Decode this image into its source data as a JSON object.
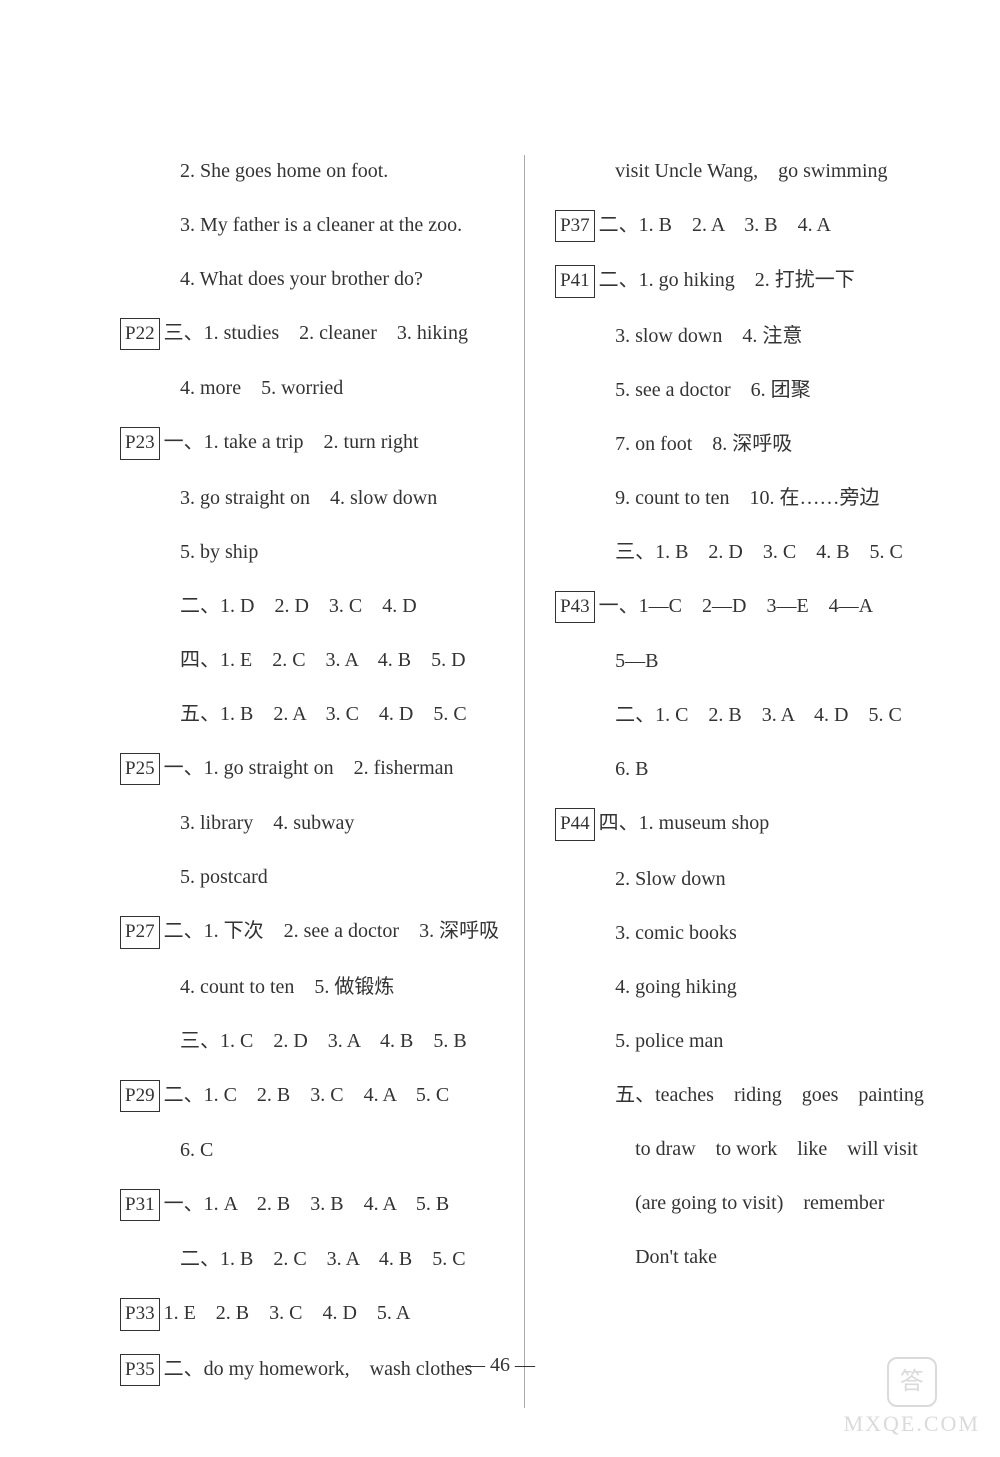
{
  "page_number": "— 46 —",
  "watermark": {
    "logo_text": "答",
    "site_text": "MXQE.COM"
  },
  "leftColumn": [
    {
      "cls": "indent-1",
      "text": "2. She goes home on foot."
    },
    {
      "cls": "indent-1",
      "text": "3. My father is a cleaner at the zoo."
    },
    {
      "cls": "indent-1",
      "text": "4. What does your brother do?"
    },
    {
      "cls": "",
      "box": "P22",
      "text": "三、1. studies　2. cleaner　3. hiking"
    },
    {
      "cls": "indent-1",
      "text": "4. more　5. worried"
    },
    {
      "cls": "",
      "box": "P23",
      "text": "一、1. take a trip　2. turn right"
    },
    {
      "cls": "indent-1",
      "text": "3. go straight on　4. slow down"
    },
    {
      "cls": "indent-1",
      "text": "5. by ship"
    },
    {
      "cls": "indent-1",
      "text": "二、1. D　2. D　3. C　4. D"
    },
    {
      "cls": "indent-1",
      "text": "四、1. E　2. C　3. A　4. B　5. D"
    },
    {
      "cls": "indent-1",
      "text": "五、1. B　2. A　3. C　4. D　5. C"
    },
    {
      "cls": "",
      "box": "P25",
      "text": "一、1. go straight on　2. fisherman"
    },
    {
      "cls": "indent-1",
      "text": "3. library　4. subway"
    },
    {
      "cls": "indent-1",
      "text": "5. postcard"
    },
    {
      "cls": "",
      "box": "P27",
      "text": "二、1. 下次　2. see a doctor　3. 深呼吸"
    },
    {
      "cls": "indent-1",
      "text": "4. count to ten　5. 做锻炼"
    },
    {
      "cls": "indent-1",
      "text": "三、1. C　2. D　3. A　4. B　5. B"
    },
    {
      "cls": "",
      "box": "P29",
      "text": "二、1. C　2. B　3. C　4. A　5. C"
    },
    {
      "cls": "indent-1",
      "text": "6. C"
    },
    {
      "cls": "",
      "box": "P31",
      "text": "一、1. A　2. B　3. B　4. A　5. B"
    },
    {
      "cls": "indent-1",
      "text": "二、1. B　2. C　3. A　4. B　5. C"
    },
    {
      "cls": "",
      "box": "P33",
      "text": "1. E　2. B　3. C　4. D　5. A"
    },
    {
      "cls": "",
      "box": "P35",
      "text": "二、do my homework,　wash clothes"
    }
  ],
  "rightColumn": [
    {
      "cls": "indent-1",
      "text": "visit Uncle Wang,　go swimming"
    },
    {
      "cls": "",
      "box": "P37",
      "text": "二、1. B　2. A　3. B　4. A"
    },
    {
      "cls": "",
      "box": "P41",
      "text": "二、1. go hiking　2. 打扰一下"
    },
    {
      "cls": "indent-1",
      "text": "3. slow down　4. 注意"
    },
    {
      "cls": "indent-1",
      "text": "5. see a doctor　6. 团聚"
    },
    {
      "cls": "indent-1",
      "text": "7. on foot　8. 深呼吸"
    },
    {
      "cls": "indent-1",
      "text": "9. count to ten　10. 在……旁边"
    },
    {
      "cls": "indent-1",
      "text": "三、1. B　2. D　3. C　4. B　5. C"
    },
    {
      "cls": "",
      "box": "P43",
      "text": "一、1—C　2—D　3—E　4—A"
    },
    {
      "cls": "indent-1",
      "text": "5—B"
    },
    {
      "cls": "indent-1",
      "text": "二、1. C　2. B　3. A　4. D　5. C"
    },
    {
      "cls": "indent-1",
      "text": "6. B"
    },
    {
      "cls": "",
      "box": "P44",
      "text": "四、1. museum shop"
    },
    {
      "cls": "indent-1",
      "text": "2. Slow down"
    },
    {
      "cls": "indent-1",
      "text": "3. comic books"
    },
    {
      "cls": "indent-1",
      "text": "4. going hiking"
    },
    {
      "cls": "indent-1",
      "text": "5. police man"
    },
    {
      "cls": "indent-1",
      "text": "五、teaches　riding　goes　painting"
    },
    {
      "cls": "indent-2",
      "text": "to draw　to work　like　will visit"
    },
    {
      "cls": "indent-2",
      "text": "(are going to visit)　remember"
    },
    {
      "cls": "indent-2",
      "text": "Don't take"
    }
  ]
}
